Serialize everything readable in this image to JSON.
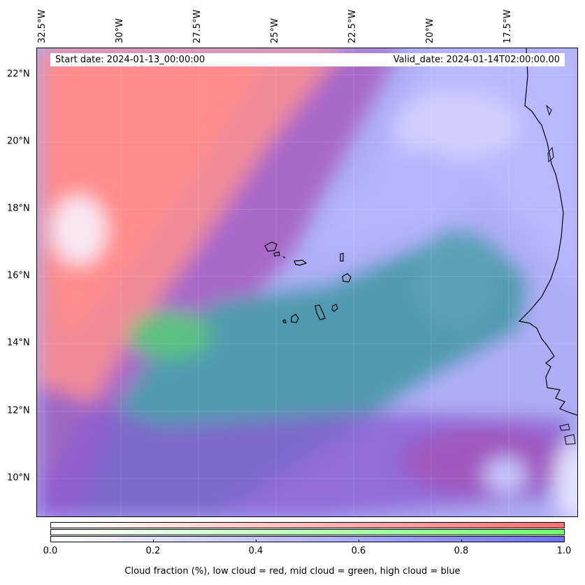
{
  "map": {
    "start_date": "Start date: 2024-01-13_00:00:00",
    "valid_date": "Valid_date: 2024-01-14T02:00:00.00",
    "lon_labels": [
      "32.5°W",
      "30°W",
      "27.5°W",
      "25°W",
      "22.5°W",
      "20°W",
      "17.5°W"
    ],
    "lat_labels": [
      "22°N",
      "20°N",
      "18°N",
      "16°N",
      "14°N",
      "12°N",
      "10°N"
    ],
    "lon_values": [
      -32.5,
      -30,
      -27.5,
      -25,
      -22.5,
      -20,
      -17.5
    ],
    "lat_values": [
      22,
      20,
      18,
      16,
      14,
      12,
      10
    ],
    "extent": {
      "lon": [
        -32.7,
        -15.25
      ],
      "lat": [
        8.85,
        22.8
      ]
    },
    "colors": {
      "low": "#ff7070",
      "mid": "#70ff70",
      "high": "#7070ff"
    }
  },
  "colorbar": {
    "ticks": [
      "0.0",
      "0.2",
      "0.4",
      "0.6",
      "0.8",
      "1.0"
    ],
    "tick_values": [
      0,
      0.2,
      0.4,
      0.6,
      0.8,
      1.0
    ],
    "range": [
      0,
      1
    ],
    "label": "Cloud fraction (%), low cloud = red, mid cloud = green, high cloud = blue"
  }
}
